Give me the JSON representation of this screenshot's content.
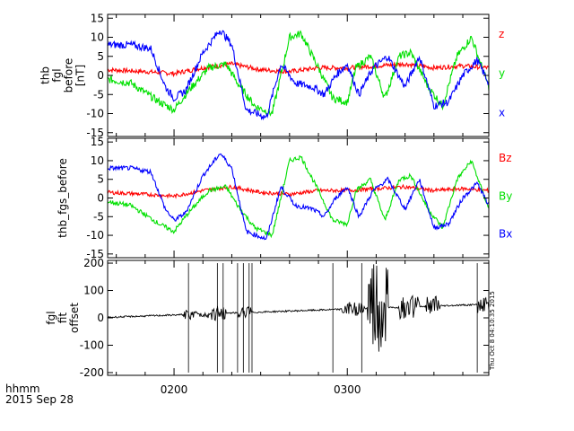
{
  "colors": {
    "red": "#ff0000",
    "green": "#00e000",
    "blue": "#0000ff",
    "black": "#000000"
  },
  "time_axis": {
    "range": [
      "01:37",
      "03:49"
    ],
    "major_ticks": [
      {
        "t": "02:00",
        "label": "0200"
      },
      {
        "t": "03:00",
        "label": "0300"
      }
    ],
    "minor_tick_step_minutes": 10,
    "bottom_label": [
      "hhmm",
      "2015 Sep 28"
    ]
  },
  "timestamp": "Thu Oct  8 04:10:35 2015",
  "chart_data": [
    {
      "type": "line",
      "ylabel": [
        "thb",
        "fgl",
        "before",
        "[nT]"
      ],
      "ylim": [
        -16,
        16
      ],
      "y_ticks": [
        15,
        10,
        5,
        0,
        -5,
        -10,
        -15
      ],
      "y_tick_labels": [
        "15",
        "10",
        "5",
        "0",
        "-5",
        "-10",
        "-15"
      ],
      "legend_placement": "right",
      "series": [
        {
          "name": "z",
          "color": "red",
          "noise": 0.6,
          "x": [
            "01:37",
            "01:50",
            "02:00",
            "02:10",
            "02:20",
            "02:30",
            "02:40",
            "02:50",
            "03:00",
            "03:10",
            "03:20",
            "03:30",
            "03:40",
            "03:49"
          ],
          "values": [
            1.5,
            1,
            0.5,
            2,
            3,
            1.5,
            1,
            2,
            2,
            2.5,
            3,
            2,
            2.5,
            2
          ]
        },
        {
          "name": "y",
          "color": "green",
          "noise": 1.0,
          "x": [
            "01:37",
            "01:45",
            "01:55",
            "02:00",
            "02:05",
            "02:12",
            "02:18",
            "02:22",
            "02:28",
            "02:34",
            "02:40",
            "02:44",
            "02:50",
            "02:55",
            "03:00",
            "03:03",
            "03:08",
            "03:13",
            "03:18",
            "03:22",
            "03:28",
            "03:33",
            "03:38",
            "03:43",
            "03:49"
          ],
          "values": [
            -1,
            -2,
            -7,
            -9,
            -4,
            2,
            3,
            -2,
            -8,
            -10,
            10,
            11,
            2,
            -6,
            -7,
            2,
            5,
            -6,
            5,
            6,
            -3,
            -8,
            5,
            10,
            -3
          ]
        },
        {
          "name": "x",
          "color": "blue",
          "noise": 1.0,
          "x": [
            "01:37",
            "01:45",
            "01:52",
            "01:57",
            "02:00",
            "02:04",
            "02:10",
            "02:16",
            "02:20",
            "02:25",
            "02:32",
            "02:37",
            "02:42",
            "02:48",
            "02:52",
            "02:56",
            "03:00",
            "03:04",
            "03:09",
            "03:14",
            "03:20",
            "03:25",
            "03:30",
            "03:35",
            "03:40",
            "03:45",
            "03:49"
          ],
          "values": [
            8,
            8,
            7,
            -3,
            -6,
            -4,
            6,
            12,
            8,
            -9,
            -11,
            3,
            -2,
            -3,
            -5,
            0,
            3,
            -5,
            2,
            5,
            -3,
            5,
            -8,
            -7,
            0,
            4,
            -2
          ]
        }
      ]
    },
    {
      "type": "line",
      "ylabel": [
        "thb_fgs_before"
      ],
      "ylim": [
        -16,
        16
      ],
      "y_ticks": [
        15,
        10,
        5,
        0,
        -5,
        -10,
        -15
      ],
      "y_tick_labels": [
        "15",
        "10",
        "5",
        "0",
        "-5",
        "-10",
        "-15"
      ],
      "legend_placement": "right",
      "series": [
        {
          "name": "Bz",
          "color": "red",
          "noise": 0.5,
          "x": [
            "01:37",
            "01:50",
            "02:00",
            "02:10",
            "02:20",
            "02:30",
            "02:40",
            "02:50",
            "03:00",
            "03:10",
            "03:20",
            "03:30",
            "03:40",
            "03:49"
          ],
          "values": [
            1.5,
            1,
            0.5,
            2,
            3,
            1.5,
            1,
            2,
            2,
            2.5,
            3,
            2,
            2.5,
            2
          ]
        },
        {
          "name": "By",
          "color": "green",
          "noise": 0.6,
          "x": [
            "01:37",
            "01:45",
            "01:55",
            "02:00",
            "02:05",
            "02:12",
            "02:18",
            "02:22",
            "02:28",
            "02:34",
            "02:40",
            "02:44",
            "02:50",
            "02:55",
            "03:00",
            "03:03",
            "03:08",
            "03:13",
            "03:18",
            "03:22",
            "03:28",
            "03:33",
            "03:38",
            "03:43",
            "03:49"
          ],
          "values": [
            -1,
            -2,
            -7,
            -9,
            -4,
            2,
            3,
            -2,
            -8,
            -10,
            10,
            11,
            2,
            -6,
            -7,
            2,
            5,
            -6,
            5,
            6,
            -3,
            -8,
            5,
            10,
            -3
          ]
        },
        {
          "name": "Bx",
          "color": "blue",
          "noise": 0.6,
          "x": [
            "01:37",
            "01:45",
            "01:52",
            "01:57",
            "02:00",
            "02:04",
            "02:10",
            "02:16",
            "02:20",
            "02:25",
            "02:32",
            "02:37",
            "02:42",
            "02:48",
            "02:52",
            "02:56",
            "03:00",
            "03:04",
            "03:09",
            "03:14",
            "03:20",
            "03:25",
            "03:30",
            "03:35",
            "03:40",
            "03:45",
            "03:49"
          ],
          "values": [
            8,
            8,
            7,
            -3,
            -6,
            -4,
            6,
            12,
            8,
            -9,
            -11,
            3,
            -2,
            -3,
            -5,
            0,
            3,
            -5,
            2,
            5,
            -3,
            5,
            -8,
            -7,
            0,
            4,
            -2
          ]
        }
      ]
    },
    {
      "type": "line",
      "ylabel": [
        "fgl",
        "fit",
        "offset"
      ],
      "ylim": [
        -210,
        210
      ],
      "y_ticks": [
        200,
        100,
        0,
        -100,
        -200
      ],
      "y_tick_labels": [
        "200",
        "100",
        "0",
        "-100",
        "-200"
      ],
      "series": [
        {
          "color": "black",
          "x": [
            "01:37",
            "03:49"
          ],
          "values": [
            2,
            50
          ],
          "spikes": [
            "02:05",
            "02:15",
            "02:17",
            "02:22",
            "02:24",
            "02:26",
            "02:27",
            "02:55",
            "03:05",
            "03:45"
          ],
          "bursts": [
            {
              "start": "02:03",
              "end": "02:12",
              "amplitude": 15
            },
            {
              "start": "02:13",
              "end": "02:18",
              "amplitude": 25
            },
            {
              "start": "02:22",
              "end": "02:27",
              "amplitude": 20
            },
            {
              "start": "02:58",
              "end": "03:06",
              "amplitude": 25
            },
            {
              "start": "03:07",
              "end": "03:14",
              "amplitude": 190
            },
            {
              "start": "03:18",
              "end": "03:25",
              "amplitude": 40
            },
            {
              "start": "03:27",
              "end": "03:32",
              "amplitude": 40
            },
            {
              "start": "03:45",
              "end": "03:49",
              "amplitude": 30
            }
          ]
        }
      ]
    }
  ]
}
